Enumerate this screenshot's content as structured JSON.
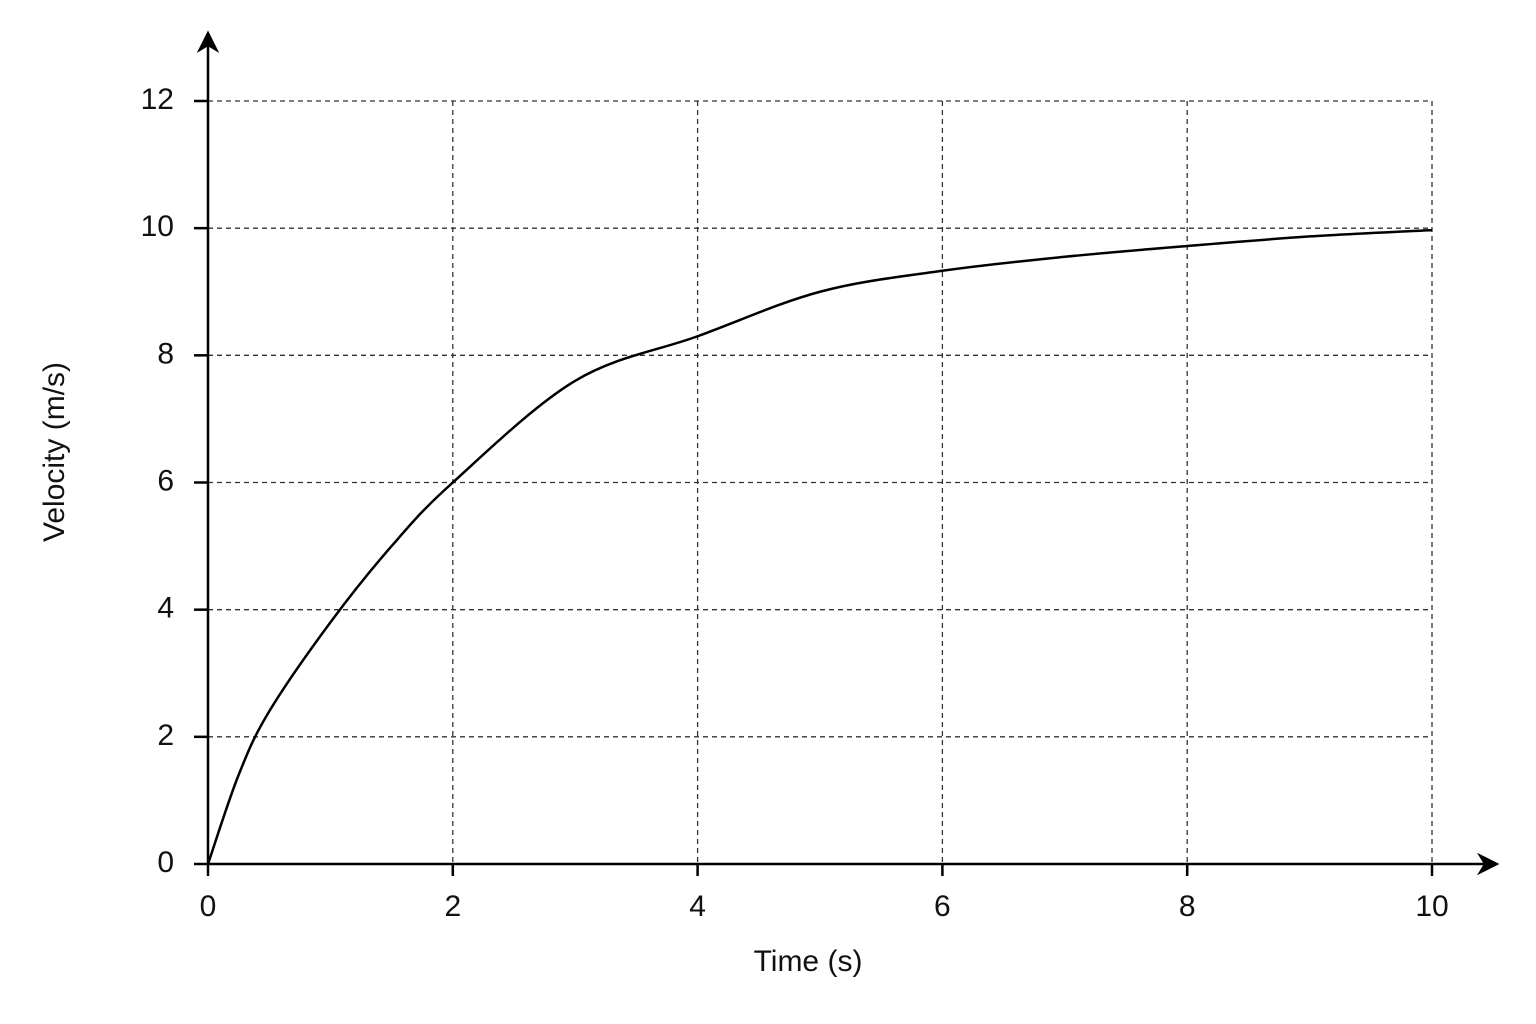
{
  "chart_data": {
    "type": "line",
    "x_label": "Time (s)",
    "y_label": "Velocity (m/s)",
    "x": [
      0,
      0.25,
      0.5,
      1,
      1.5,
      2,
      3,
      4,
      5,
      6,
      7,
      8,
      9,
      10
    ],
    "series": [
      {
        "name": "Velocity",
        "color": "#000000",
        "values": [
          0,
          1.4,
          2.4,
          3.8,
          5.0,
          6.0,
          7.6,
          8.3,
          9.0,
          9.33,
          9.55,
          9.72,
          9.87,
          9.97
        ]
      }
    ],
    "xlim": [
      0,
      10
    ],
    "xticks": [
      0,
      2,
      4,
      6,
      8,
      10
    ],
    "ylim": [
      0,
      12
    ],
    "yticks": [
      0,
      2,
      4,
      6,
      8,
      10,
      12
    ],
    "grid": true
  }
}
